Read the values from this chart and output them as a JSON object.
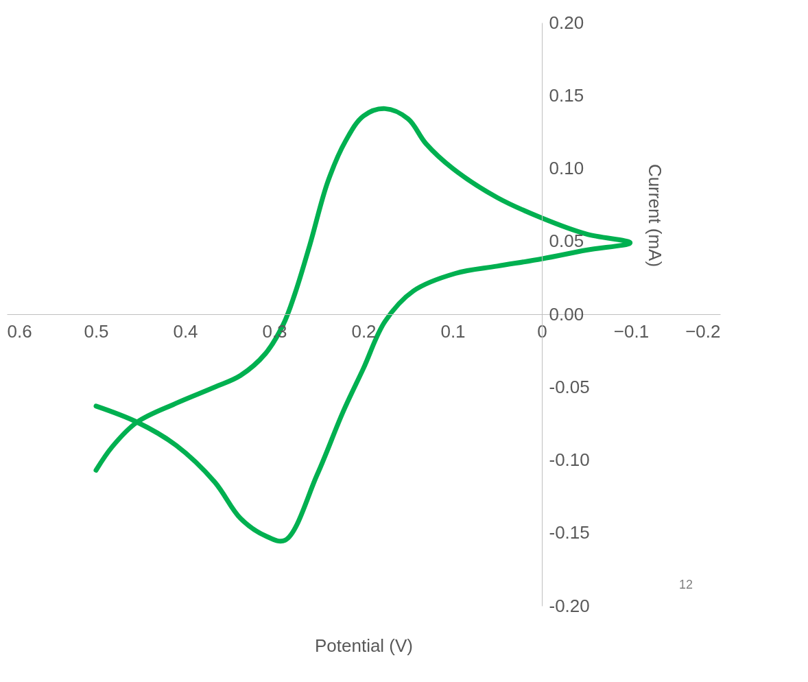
{
  "chart_data": {
    "type": "line",
    "xlabel": "Potential (V)",
    "ylabel": "Current (mA)",
    "x": [
      0.5,
      0.454,
      0.41,
      0.367,
      0.338,
      0.31,
      0.288,
      0.252,
      0.223,
      0.2,
      0.176,
      0.144,
      0.097,
      0.05,
      0.0,
      -0.05,
      -0.099,
      -0.05,
      0.0,
      0.05,
      0.1,
      0.13,
      0.15,
      0.176,
      0.2,
      0.22,
      0.24,
      0.26,
      0.277,
      0.29,
      0.31,
      0.338,
      0.367,
      0.41,
      0.454,
      0.482,
      0.5
    ],
    "series": [
      {
        "color": "#00b050",
        "values": [
          -0.063,
          -0.074,
          -0.09,
          -0.115,
          -0.14,
          -0.152,
          -0.155,
          -0.11,
          -0.067,
          -0.037,
          -0.005,
          0.016,
          0.028,
          0.033,
          0.038,
          0.044,
          0.049,
          0.055,
          0.066,
          0.08,
          0.1,
          0.117,
          0.134,
          0.141,
          0.136,
          0.119,
          0.091,
          0.048,
          0.014,
          -0.007,
          -0.027,
          -0.042,
          -0.05,
          -0.061,
          -0.074,
          -0.091,
          -0.107
        ]
      }
    ],
    "xlim": [
      0.6,
      -0.2
    ],
    "xticks": [
      0.6,
      0.5,
      0.4,
      0.3,
      0.2,
      0.1,
      {
        "value": 0,
        "label": "0"
      },
      -0.1,
      -0.2
    ],
    "ylim": [
      -0.2,
      0.2
    ],
    "yticks": [
      {
        "value": -0.2,
        "label": "-0.20"
      },
      {
        "value": -0.15,
        "label": "-0.15"
      },
      {
        "value": -0.1,
        "label": "-0.10"
      },
      {
        "value": -0.05,
        "label": "-0.05"
      },
      {
        "value": 0,
        "label": "0.00"
      },
      {
        "value": 0.05,
        "label": "0.05"
      },
      {
        "value": 0.1,
        "label": "0.10"
      },
      {
        "value": 0.15,
        "label": "0.15"
      },
      {
        "value": 0.2,
        "label": "0.20"
      }
    ],
    "grid": false,
    "marker": "none",
    "line_style": "solid",
    "annotations": [
      "12"
    ]
  }
}
